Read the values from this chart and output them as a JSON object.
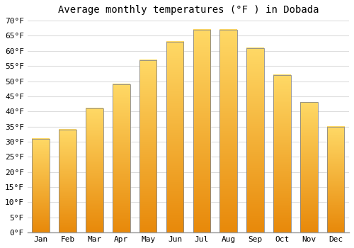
{
  "title": "Average monthly temperatures (°F ) in Dobada",
  "months": [
    "Jan",
    "Feb",
    "Mar",
    "Apr",
    "May",
    "Jun",
    "Jul",
    "Aug",
    "Sep",
    "Oct",
    "Nov",
    "Dec"
  ],
  "values": [
    31,
    34,
    41,
    49,
    57,
    63,
    67,
    67,
    61,
    52,
    43,
    35
  ],
  "bar_color_bottom": "#E8890A",
  "bar_color_top": "#FFD966",
  "bar_edge_color": "#888888",
  "ylim": [
    0,
    70
  ],
  "yticks": [
    0,
    5,
    10,
    15,
    20,
    25,
    30,
    35,
    40,
    45,
    50,
    55,
    60,
    65,
    70
  ],
  "background_color": "#ffffff",
  "grid_color": "#dddddd",
  "title_fontsize": 10,
  "tick_fontsize": 8,
  "font_family": "monospace"
}
